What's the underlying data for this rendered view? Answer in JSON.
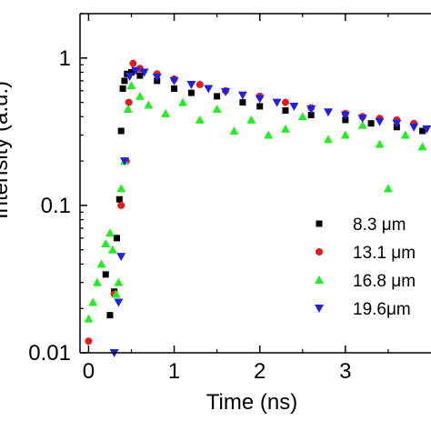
{
  "chart_data": {
    "type": "scatter",
    "xlabel": "Time (ns)",
    "ylabel": "Intensity (a.u.)",
    "xlim": [
      -0.1,
      4.0
    ],
    "ylim": [
      0.01,
      2.0
    ],
    "y_scale": "log",
    "x_ticks": [
      0,
      1,
      2,
      3
    ],
    "x_tick_labels": [
      "0",
      "1",
      "2",
      "3"
    ],
    "y_ticks": [
      0.01,
      0.1,
      1
    ],
    "y_tick_labels": [
      "0.01",
      "0.1",
      "1"
    ],
    "legend_position": "right",
    "grid": false,
    "series": [
      {
        "name": "8.3 μm",
        "marker": "square",
        "color": "#000000",
        "x": [
          0.2,
          0.25,
          0.3,
          0.33,
          0.36,
          0.38,
          0.4,
          0.42,
          0.45,
          0.5,
          0.6,
          0.8,
          1.0,
          1.2,
          1.5,
          1.8,
          2.0,
          2.3,
          2.6,
          3.0,
          3.3,
          3.6,
          3.9
        ],
        "y": [
          0.034,
          0.018,
          0.026,
          0.06,
          0.11,
          0.32,
          0.62,
          0.7,
          0.78,
          0.8,
          0.76,
          0.7,
          0.62,
          0.58,
          0.55,
          0.5,
          0.47,
          0.44,
          0.41,
          0.38,
          0.36,
          0.34,
          0.32
        ]
      },
      {
        "name": "13.1 μm",
        "marker": "circle",
        "color": "#e41a1c",
        "x": [
          0.0,
          0.3,
          0.38,
          0.44,
          0.47,
          0.52,
          0.6,
          0.8,
          1.0,
          1.3,
          1.6,
          2.0,
          2.3,
          2.6,
          3.0,
          3.2,
          3.4,
          3.6,
          3.8
        ],
        "y": [
          0.012,
          0.025,
          0.1,
          0.2,
          0.5,
          0.92,
          0.85,
          0.78,
          0.72,
          0.66,
          0.6,
          0.55,
          0.5,
          0.46,
          0.42,
          0.4,
          0.39,
          0.38,
          0.36
        ]
      },
      {
        "name": "16.8 μm",
        "marker": "triangle-up",
        "color": "#22ee22",
        "x": [
          0.0,
          0.05,
          0.1,
          0.15,
          0.2,
          0.25,
          0.28,
          0.32,
          0.35,
          0.38,
          0.42,
          0.46,
          0.5,
          0.6,
          0.7,
          0.9,
          1.1,
          1.3,
          1.5,
          1.7,
          1.9,
          2.1,
          2.3,
          2.5,
          2.8,
          3.0,
          3.2,
          3.4,
          3.5,
          3.7,
          3.9
        ],
        "y": [
          0.017,
          0.022,
          0.03,
          0.04,
          0.055,
          0.065,
          0.05,
          0.025,
          0.03,
          0.13,
          0.2,
          0.45,
          0.65,
          0.55,
          0.48,
          0.42,
          0.5,
          0.38,
          0.45,
          0.32,
          0.38,
          0.3,
          0.33,
          0.4,
          0.28,
          0.3,
          0.35,
          0.26,
          0.13,
          0.3,
          0.25
        ]
      },
      {
        "name": "19.6μm",
        "marker": "triangle-down",
        "color": "#1f1fe6",
        "x": [
          0.3,
          0.35,
          0.38,
          0.42,
          0.48,
          0.55,
          0.65,
          0.8,
          1.0,
          1.2,
          1.4,
          1.6,
          1.8,
          2.0,
          2.2,
          2.4,
          2.6,
          2.8,
          3.0,
          3.2,
          3.4,
          3.6,
          3.8,
          3.95
        ],
        "y": [
          0.01,
          0.022,
          0.045,
          0.2,
          0.75,
          0.82,
          0.8,
          0.74,
          0.7,
          0.66,
          0.62,
          0.59,
          0.56,
          0.53,
          0.5,
          0.47,
          0.45,
          0.43,
          0.41,
          0.39,
          0.37,
          0.36,
          0.34,
          0.33
        ]
      }
    ]
  }
}
